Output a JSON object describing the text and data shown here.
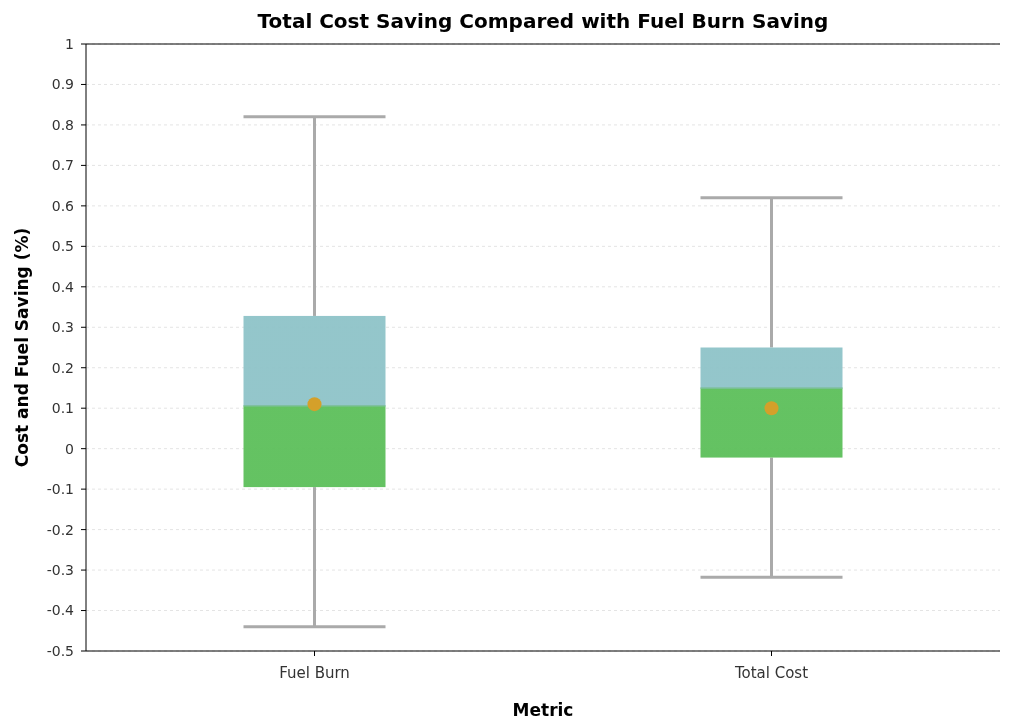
{
  "chart_data": {
    "type": "box",
    "title": "Total Cost Saving Compared with Fuel Burn Saving",
    "xlabel": "Metric",
    "ylabel": "Cost and Fuel Saving (%)",
    "categories": [
      "Fuel Burn",
      "Total Cost"
    ],
    "boxes": [
      {
        "low": -0.44,
        "q1": -0.095,
        "median": 0.106,
        "q3": 0.328,
        "high": 0.82,
        "mean": 0.11
      },
      {
        "low": -0.318,
        "q1": -0.022,
        "median": 0.15,
        "q3": 0.25,
        "high": 0.62,
        "mean": 0.1
      }
    ],
    "colors": [
      "#8ec3c8",
      "#5cbf5a"
    ],
    "ylim": [
      -0.5,
      1
    ],
    "yticks": [
      -0.5,
      -0.4,
      -0.3,
      -0.2,
      -0.1,
      0,
      0.1,
      0.2,
      0.3,
      0.4,
      0.5,
      0.6,
      0.7,
      0.8,
      0.9,
      1
    ],
    "grid": "y"
  }
}
